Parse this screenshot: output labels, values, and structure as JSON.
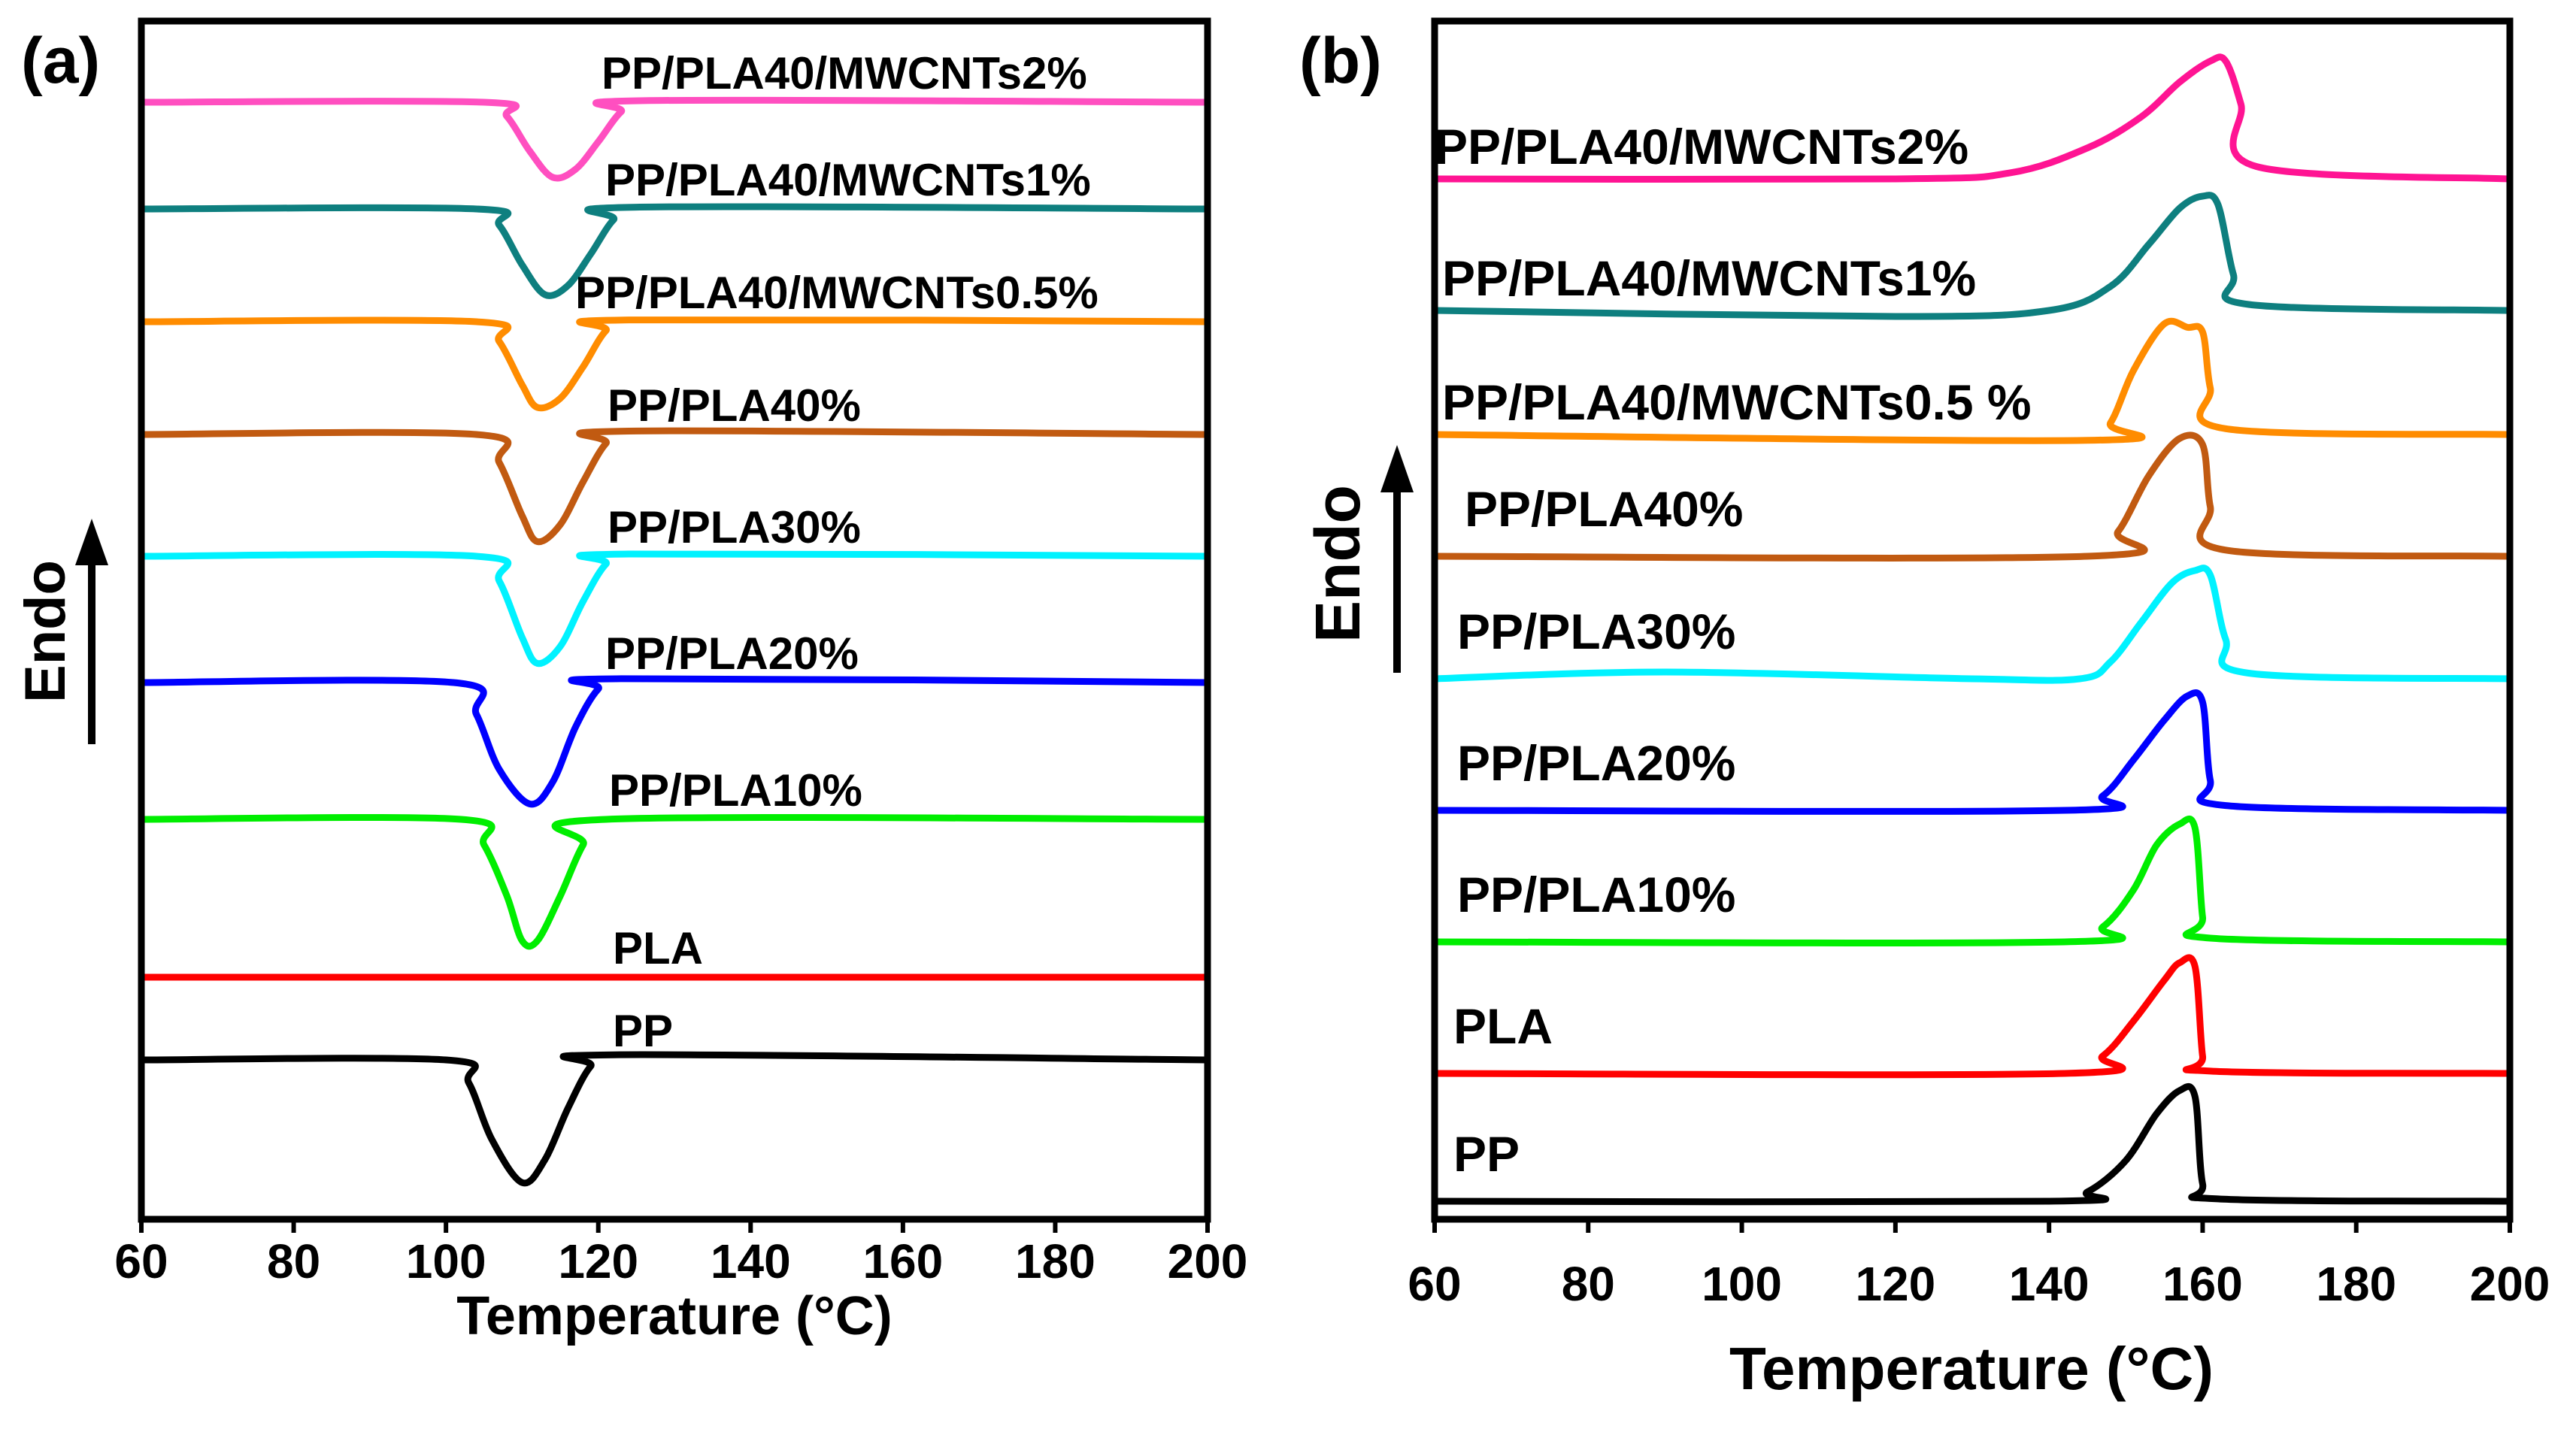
{
  "chart_data": [
    {
      "type": "line",
      "panel_label": "(a)",
      "xlabel": "Temperature (°C)",
      "ylabel": "Endo",
      "xlim": [
        60,
        200
      ],
      "x_ticks": [
        "60",
        "80",
        "100",
        "120",
        "140",
        "160",
        "180",
        "200"
      ],
      "y_ticks_labeled": false,
      "legend": "inline labels above each curve",
      "baseline_order": "bottom to top",
      "series": [
        {
          "name": "PP",
          "color": "#000000",
          "x": [
            60,
            100,
            103,
            106,
            110,
            113,
            116,
            119,
            122,
            200
          ],
          "values": [
            0,
            0,
            -0.18,
            -0.62,
            -0.96,
            -0.78,
            -0.38,
            -0.05,
            0.04,
            0
          ]
        },
        {
          "name": "PLA",
          "color": "#ff0000",
          "x": [
            60,
            200
          ],
          "values": [
            0,
            0
          ]
        },
        {
          "name": "PP/PLA10%",
          "color": "#00ee00",
          "x": [
            60,
            102,
            105,
            108,
            110,
            112,
            115,
            118,
            121,
            200
          ],
          "values": [
            0,
            0,
            -0.2,
            -0.6,
            -0.95,
            -0.95,
            -0.6,
            -0.2,
            0,
            0
          ]
        },
        {
          "name": "PP/PLA20%",
          "color": "#0000ff",
          "x": [
            60,
            101,
            104,
            107,
            111,
            114,
            117,
            120,
            123,
            200
          ],
          "values": [
            0,
            0,
            -0.25,
            -0.68,
            -0.95,
            -0.78,
            -0.35,
            -0.05,
            0.03,
            0
          ]
        },
        {
          "name": "PP/PLA30%",
          "color": "#00f2ff",
          "x": [
            60,
            104,
            107,
            110,
            112,
            115,
            118,
            121,
            124,
            200
          ],
          "values": [
            0,
            0,
            -0.22,
            -0.72,
            -0.95,
            -0.8,
            -0.4,
            -0.07,
            0.02,
            0
          ]
        },
        {
          "name": "PP/PLA40%",
          "color": "#c15a11",
          "x": [
            60,
            104,
            107,
            110,
            112,
            115,
            118,
            121,
            124,
            200
          ],
          "values": [
            0,
            0,
            -0.25,
            -0.72,
            -0.95,
            -0.8,
            -0.42,
            -0.08,
            0.03,
            0
          ]
        },
        {
          "name": "PP/PLA40/MWCNTs0.5%",
          "color": "#ff8c00",
          "x": [
            60,
            104,
            107,
            110,
            112,
            115,
            118,
            121,
            124,
            200
          ],
          "values": [
            0,
            0,
            -0.22,
            -0.7,
            -0.95,
            -0.85,
            -0.5,
            -0.1,
            0.02,
            0
          ]
        },
        {
          "name": "PP/PLA40/MWCNTs1%",
          "color": "#0e7f7f",
          "x": [
            60,
            104,
            107,
            110,
            113,
            116,
            119,
            122,
            125,
            200
          ],
          "values": [
            0,
            0,
            -0.18,
            -0.62,
            -0.95,
            -0.85,
            -0.5,
            -0.12,
            0.02,
            0
          ]
        },
        {
          "name": "PP/PLA40/MWCNTs2%",
          "color": "#ff4fc0",
          "x": [
            60,
            105,
            108,
            111,
            114,
            117,
            120,
            123,
            126,
            200
          ],
          "values": [
            0,
            0,
            -0.18,
            -0.62,
            -0.95,
            -0.85,
            -0.5,
            -0.12,
            0.02,
            0
          ]
        }
      ]
    },
    {
      "type": "line",
      "panel_label": "(b)",
      "xlabel": "Temperature (°C)",
      "ylabel": "Endo",
      "xlim": [
        60,
        200
      ],
      "x_ticks": [
        "60",
        "80",
        "100",
        "120",
        "140",
        "160",
        "180",
        "200"
      ],
      "y_ticks_labeled": false,
      "legend": "inline labels above each curve",
      "baseline_order": "bottom to top",
      "series": [
        {
          "name": "PP",
          "color": "#000000",
          "x": [
            60,
            140,
            145,
            150,
            154,
            157,
            159,
            160,
            162,
            200
          ],
          "values": [
            0,
            0,
            0.08,
            0.35,
            0.75,
            0.95,
            0.9,
            0.15,
            0.02,
            0
          ]
        },
        {
          "name": "PLA",
          "color": "#ff0000",
          "x": [
            60,
            142,
            147,
            151,
            155,
            157,
            159,
            160,
            161,
            200
          ],
          "values": [
            0,
            0,
            0.15,
            0.45,
            0.8,
            0.95,
            0.92,
            0.15,
            0.02,
            0
          ]
        },
        {
          "name": "PP/PLA10%",
          "color": "#00ee00",
          "x": [
            60,
            142,
            147,
            151,
            154,
            157,
            159,
            160,
            161,
            200
          ],
          "values": [
            0,
            0,
            0.12,
            0.42,
            0.78,
            0.95,
            0.92,
            0.2,
            0.03,
            0
          ]
        },
        {
          "name": "PP/PLA20%",
          "color": "#0000ff",
          "x": [
            60,
            142,
            147,
            151,
            155,
            158,
            160,
            161,
            163,
            200
          ],
          "values": [
            0,
            0,
            0.12,
            0.42,
            0.75,
            0.95,
            0.9,
            0.25,
            0.04,
            0
          ]
        },
        {
          "name": "PP/PLA30%",
          "color": "#00f2ff",
          "x": [
            60,
            90,
            130,
            144,
            148,
            152,
            156,
            159,
            161,
            163,
            166,
            200
          ],
          "values": [
            0,
            0.06,
            0,
            0,
            0.15,
            0.5,
            0.85,
            0.96,
            0.92,
            0.35,
            0.05,
            0
          ]
        },
        {
          "name": "PP/PLA40%",
          "color": "#c15a11",
          "x": [
            60,
            145,
            149,
            153,
            157,
            160,
            161,
            163,
            200
          ],
          "values": [
            0,
            0,
            0.2,
            0.65,
            0.95,
            0.9,
            0.4,
            0.05,
            0
          ]
        },
        {
          "name": "PP/PLA40/MWCNTs0.5 %",
          "color": "#ff8c00",
          "x": [
            60,
            145,
            148,
            151,
            155,
            158,
            160,
            161,
            163,
            200
          ],
          "values": [
            0,
            -0.05,
            0.1,
            0.55,
            0.95,
            0.92,
            0.88,
            0.4,
            0.05,
            0
          ]
        },
        {
          "name": "PP/PLA40/MWCNTs1%",
          "color": "#0e7f7f",
          "x": [
            60,
            120,
            140,
            148,
            153,
            157,
            160,
            162,
            164,
            166,
            200
          ],
          "values": [
            0,
            -0.05,
            0,
            0.2,
            0.55,
            0.85,
            0.95,
            0.88,
            0.3,
            0.05,
            0
          ]
        },
        {
          "name": "PP/PLA40/MWCNTs2%",
          "color": "#ff1493",
          "x": [
            60,
            120,
            135,
            145,
            152,
            157,
            161,
            163,
            165,
            167,
            200
          ],
          "values": [
            0,
            0,
            0.05,
            0.25,
            0.5,
            0.78,
            0.95,
            0.95,
            0.6,
            0.1,
            0
          ]
        }
      ]
    }
  ]
}
